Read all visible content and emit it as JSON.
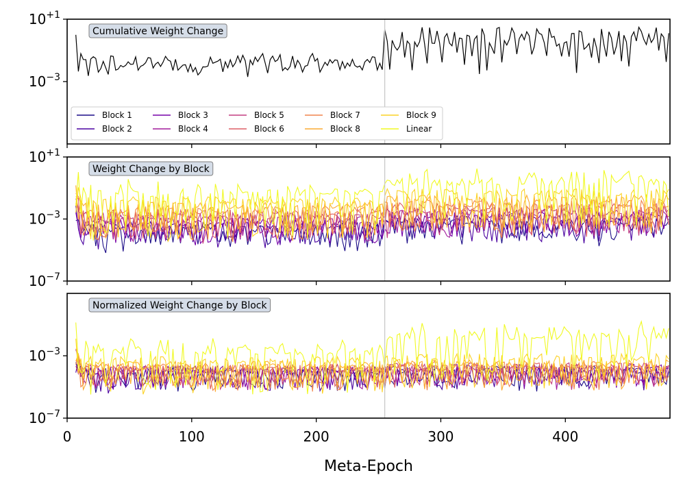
{
  "chart_data": {
    "type": "line",
    "xlabel": "Meta-Epoch",
    "xlim": [
      0,
      484
    ],
    "xticks": [
      0,
      100,
      200,
      300,
      400
    ],
    "xtick_labels": [
      "0",
      "100",
      "200",
      "300",
      "400"
    ],
    "vline_x": 255,
    "colors": {
      "cumulative": "#000000",
      "vline": "#c8c8c8",
      "title_box_fill": "#d5dde8",
      "title_box_stroke": "#7f7f7f",
      "series": [
        "#1b0c87",
        "#4a02a0",
        "#7601a8",
        "#a01a9c",
        "#c33d80",
        "#de5f65",
        "#f1844b",
        "#fcab32",
        "#fcd225",
        "#f0f921"
      ]
    },
    "legend": {
      "entries": [
        "Block 1",
        "Block 2",
        "Block 3",
        "Block 4",
        "Block 5",
        "Block 6",
        "Block 7",
        "Block 8",
        "Block 9",
        "Linear"
      ],
      "ncol": 5,
      "placement": "lower-left of top panel"
    },
    "panels": [
      {
        "title": "Cumulative Weight Change",
        "yscale": "log",
        "ylim_exp": [
          -7,
          1
        ],
        "ytick_exp": [
          1,
          -3
        ],
        "ytick_labels": [
          {
            "base": "10",
            "exp": "+1"
          },
          {
            "base": "10",
            "exp": "−3"
          }
        ],
        "series": [
          {
            "name": "Cumulative",
            "segments": [
              {
                "x_start": 7,
                "x_end": 254,
                "base_exp": -1.8,
                "amp": 0.6,
                "drop_every": 4,
                "drop": 0.5
              },
              {
                "x_start": 255,
                "x_end": 484,
                "base_exp": -0.2,
                "amp": 0.7,
                "drop_every": 3,
                "drop": 2.2
              }
            ]
          }
        ]
      },
      {
        "title": "Weight Change by Block",
        "yscale": "log",
        "ylim_exp": [
          -7,
          1
        ],
        "ytick_exp": [
          1,
          -3,
          -7
        ],
        "ytick_labels": [
          {
            "base": "10",
            "exp": "+1"
          },
          {
            "base": "10",
            "exp": "−3"
          },
          {
            "base": "10",
            "exp": "−7"
          }
        ],
        "series": [
          {
            "name": "Block 1",
            "base_exp": [
              -3.6,
              -3.2
            ],
            "drop": 1.4
          },
          {
            "name": "Block 2",
            "base_exp": [
              -3.4,
              -3.0
            ],
            "drop": 1.4
          },
          {
            "name": "Block 3",
            "base_exp": [
              -3.2,
              -2.8
            ],
            "drop": 1.4
          },
          {
            "name": "Block 4",
            "base_exp": [
              -3.0,
              -2.6
            ],
            "drop": 1.4
          },
          {
            "name": "Block 5",
            "base_exp": [
              -2.8,
              -2.4
            ],
            "drop": 1.6
          },
          {
            "name": "Block 6",
            "base_exp": [
              -2.6,
              -2.2
            ],
            "drop": 1.8
          },
          {
            "name": "Block 7",
            "base_exp": [
              -2.4,
              -2.0
            ],
            "drop": 2.0
          },
          {
            "name": "Block 8",
            "base_exp": [
              -2.1,
              -1.7
            ],
            "drop": 2.2
          },
          {
            "name": "Block 9",
            "base_exp": [
              -1.8,
              -1.3
            ],
            "drop": 2.5
          },
          {
            "name": "Linear",
            "base_exp": [
              -1.3,
              -0.6
            ],
            "drop": 3.0
          }
        ]
      },
      {
        "title": "Normalized Weight Change by Block",
        "yscale": "log",
        "ylim_exp": [
          -7,
          1
        ],
        "ytick_exp": [
          -3,
          -7
        ],
        "ytick_labels": [
          {
            "base": "10",
            "exp": "−3"
          },
          {
            "base": "10",
            "exp": "−7"
          }
        ],
        "series": [
          {
            "name": "Block 1",
            "base_exp": [
              -4.0,
              -3.9
            ],
            "drop": 1.2
          },
          {
            "name": "Block 2",
            "base_exp": [
              -4.0,
              -3.9
            ],
            "drop": 1.2
          },
          {
            "name": "Block 3",
            "base_exp": [
              -3.9,
              -3.8
            ],
            "drop": 1.2
          },
          {
            "name": "Block 4",
            "base_exp": [
              -3.9,
              -3.8
            ],
            "drop": 1.2
          },
          {
            "name": "Block 5",
            "base_exp": [
              -3.8,
              -3.7
            ],
            "drop": 1.3
          },
          {
            "name": "Block 6",
            "base_exp": [
              -3.8,
              -3.7
            ],
            "drop": 1.3
          },
          {
            "name": "Block 7",
            "base_exp": [
              -3.7,
              -3.6
            ],
            "drop": 1.4
          },
          {
            "name": "Block 8",
            "base_exp": [
              -3.6,
              -3.5
            ],
            "drop": 1.6
          },
          {
            "name": "Block 9",
            "base_exp": [
              -3.3,
              -3.1
            ],
            "drop": 2.0
          },
          {
            "name": "Linear",
            "base_exp": [
              -2.7,
              -1.8
            ],
            "drop": 2.8
          }
        ]
      }
    ]
  }
}
